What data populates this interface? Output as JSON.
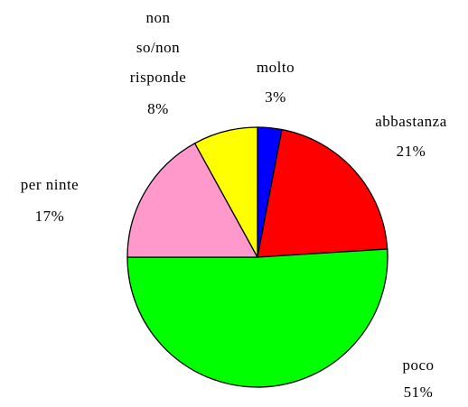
{
  "chart_data": {
    "type": "pie",
    "categories": [
      "molto",
      "abbastanza",
      "poco",
      "per ninte",
      "non so/non risponde"
    ],
    "values": [
      3,
      21,
      51,
      17,
      8
    ],
    "value_labels": [
      "3%",
      "21%",
      "51%",
      "17%",
      "8%"
    ],
    "colors": [
      "#0000ff",
      "#ff0000",
      "#00ff00",
      "#ff99cc",
      "#ffff00"
    ]
  }
}
